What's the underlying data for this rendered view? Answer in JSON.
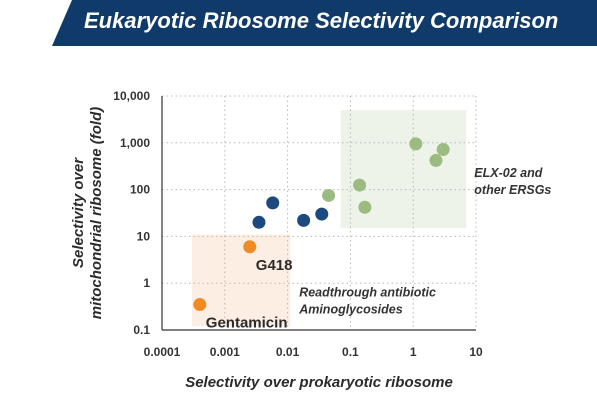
{
  "chart_data": {
    "type": "scatter",
    "title": "Eukaryotic Ribosome Selectivity Comparison",
    "xlabel": "Selectivity over prokaryotic ribosome",
    "ylabel_lines": [
      "Selectivity over",
      "mitochondrial ribosome (fold)"
    ],
    "x_scale": "log",
    "y_scale": "log",
    "xlim": [
      0.0001,
      10
    ],
    "ylim": [
      0.1,
      10000
    ],
    "x_ticks": [
      "0.0001",
      "0.001",
      "0.01",
      "0.1",
      "1",
      "10"
    ],
    "y_ticks": [
      "0.1",
      "1",
      "10",
      "100",
      "1,000",
      "10,000"
    ],
    "grid": true,
    "groups": [
      {
        "name": "ELX-02 and other ERSGs",
        "label_lines": [
          "ELX-02 and",
          "other ERSGs"
        ],
        "box_color": "#eef3e9",
        "box_x": [
          0.07,
          7
        ],
        "box_y": [
          15,
          5000
        ]
      },
      {
        "name": "Readthrough antibiotic Aminoglycosides",
        "label_lines": [
          "Readthrough antibiotic",
          "Aminoglycosides"
        ],
        "box_color": "#fdeee4",
        "box_x": [
          0.0003,
          0.011
        ],
        "box_y": [
          0.12,
          11
        ]
      }
    ],
    "series": [
      {
        "color": "#f08a24",
        "points": [
          {
            "x": 0.0025,
            "y": 6,
            "label": "G418"
          },
          {
            "x": 0.0004,
            "y": 0.35,
            "label": "Gentamicin"
          }
        ]
      },
      {
        "color": "#1d4a7e",
        "points": [
          {
            "x": 0.0035,
            "y": 20
          },
          {
            "x": 0.0058,
            "y": 52
          },
          {
            "x": 0.018,
            "y": 22
          },
          {
            "x": 0.035,
            "y": 30
          }
        ]
      },
      {
        "color": "#9cbb80",
        "points": [
          {
            "x": 0.045,
            "y": 75
          },
          {
            "x": 0.14,
            "y": 125
          },
          {
            "x": 0.17,
            "y": 42
          },
          {
            "x": 1.1,
            "y": 950
          },
          {
            "x": 2.3,
            "y": 420
          },
          {
            "x": 3,
            "y": 720
          }
        ]
      }
    ]
  }
}
